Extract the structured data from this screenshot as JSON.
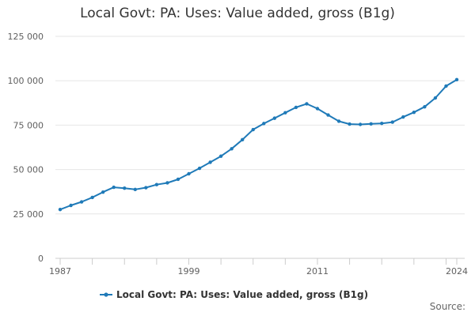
{
  "chart_data": {
    "type": "line",
    "title": "Local Govt: PA: Uses: Value added, gross (B1g)",
    "xlabel": "",
    "ylabel": "",
    "xlim": [
      1987,
      2024
    ],
    "ylim": [
      0,
      125000
    ],
    "yticks": [
      0,
      25000,
      50000,
      75000,
      100000,
      125000
    ],
    "ytick_labels": [
      "0",
      "25 000",
      "50 000",
      "75 000",
      "100 000",
      "125 000"
    ],
    "xtick_labels": [
      "1987",
      "1999",
      "2011",
      "2024"
    ],
    "xtick_values": [
      1987,
      1999,
      2011,
      2024
    ],
    "grid": true,
    "legend_position": "bottom",
    "color": "#1f7ab8",
    "series": [
      {
        "name": "Local Govt: PA: Uses: Value added, gross (B1g)",
        "x": [
          1987,
          1988,
          1989,
          1990,
          1991,
          1992,
          1993,
          1994,
          1995,
          1996,
          1997,
          1998,
          1999,
          2000,
          2001,
          2002,
          2003,
          2004,
          2005,
          2006,
          2007,
          2008,
          2009,
          2010,
          2011,
          2012,
          2013,
          2014,
          2015,
          2016,
          2017,
          2018,
          2019,
          2020,
          2021,
          2022,
          2023,
          2024
        ],
        "values": [
          27500,
          29800,
          31800,
          34300,
          37300,
          40000,
          39500,
          38800,
          39800,
          41500,
          42500,
          44500,
          47600,
          50700,
          54100,
          57500,
          61700,
          66800,
          72500,
          75900,
          78900,
          82000,
          85000,
          87000,
          84300,
          80700,
          77200,
          75600,
          75400,
          75700,
          76000,
          76700,
          79600,
          82200,
          85300,
          90300,
          97000,
          100600
        ]
      }
    ]
  },
  "source_label": "Source:"
}
